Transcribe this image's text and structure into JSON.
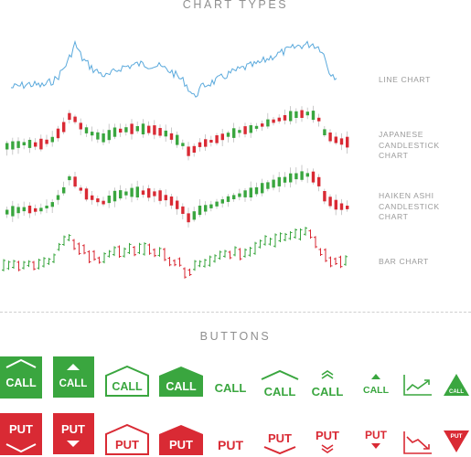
{
  "headings": {
    "chart_types": "CHART TYPES",
    "buttons": "BUTTONS"
  },
  "chart_labels": {
    "line": "LINE CHART",
    "japanese_1": "JAPANESE",
    "japanese_2": "CANDLESTICK CHART",
    "haiken_1": "HAIKEN ASHI",
    "haiken_2": "CANDLESTICK CHART",
    "bar": "BAR CHART"
  },
  "buttons": {
    "call": "CALL",
    "put": "PUT"
  },
  "colors": {
    "line": "#5aa9dc",
    "up": "#3aa63f",
    "down": "#d92a34",
    "wick": "#bdbdbd",
    "text": "#9a9a9a"
  }
}
